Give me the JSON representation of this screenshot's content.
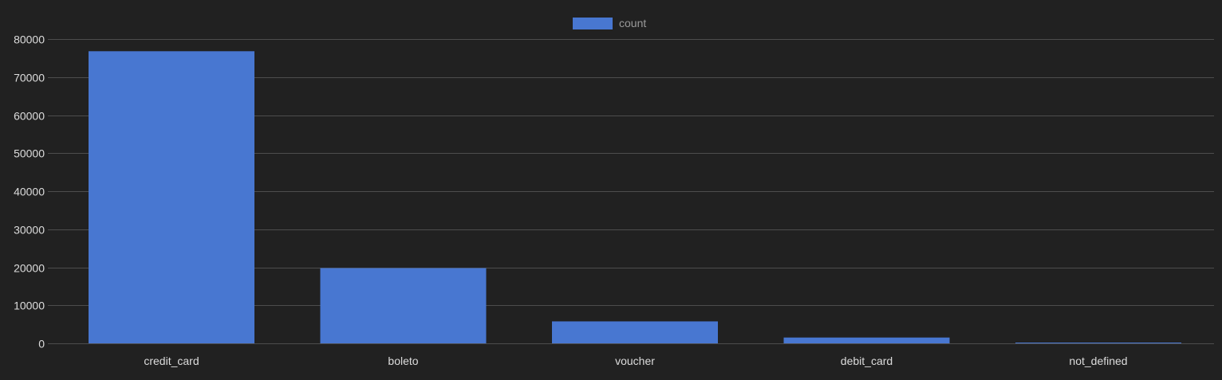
{
  "colors": {
    "background": "#212121",
    "bar": "#4877D1",
    "grid": "#4d4d4d",
    "tick_text": "#dcdcdc",
    "legend_text": "#9a9a9a"
  },
  "chart_data": {
    "type": "bar",
    "categories": [
      "credit_card",
      "boleto",
      "voucher",
      "debit_card",
      "not_defined"
    ],
    "series": [
      {
        "name": "count",
        "values": [
          76795,
          19784,
          5775,
          1529,
          3
        ]
      }
    ],
    "ylim": [
      0,
      80000
    ],
    "yticks": [
      0,
      10000,
      20000,
      30000,
      40000,
      50000,
      60000,
      70000,
      80000
    ],
    "grid": true,
    "legend_position": "top-center",
    "title": "",
    "xlabel": "",
    "ylabel": ""
  }
}
